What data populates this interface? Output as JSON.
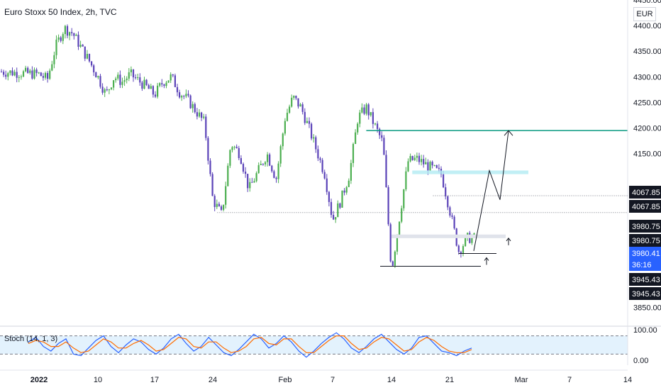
{
  "header": {
    "title": "Euro Stoxx 50 Index, 2h, TVC",
    "currency": "EUR"
  },
  "indicator": {
    "label": "Stoch (14, 1, 3)"
  },
  "colors": {
    "bull": "#4caf50",
    "bear": "#5b43b8",
    "resistance": "#089981",
    "zone": "#b2ebf2",
    "stoch_k": "#2962ff",
    "stoch_d": "#ff6d00",
    "price_tag_current": "#2962ff",
    "price_tag_level": "#131722",
    "stoch_band": "#e3f2fd"
  },
  "chart_data": [
    {
      "type": "candlestick",
      "title": "Euro Stoxx 50 Index, 2h, TVC",
      "ylim": [
        3820,
        4450
      ],
      "y_ticks": [
        3850.0,
        4150.0,
        4200.0,
        4250.0,
        4300.0,
        4350.0,
        4400.0,
        4450.0
      ],
      "x_ticks": [
        "2022",
        "10",
        "17",
        "24",
        "Feb",
        "7",
        "14",
        "21",
        "Mar",
        "7",
        "14"
      ],
      "close_path": [
        [
          "2022",
          4305
        ],
        [
          4,
          4295
        ],
        [
          5,
          4360
        ],
        [
          6,
          4395
        ],
        [
          7,
          4385
        ],
        [
          9,
          4330
        ],
        [
          10,
          4300
        ],
        [
          11,
          4265
        ],
        [
          12,
          4300
        ],
        [
          13,
          4290
        ],
        [
          14,
          4305
        ],
        [
          16,
          4280
        ],
        [
          17,
          4265
        ],
        [
          18,
          4290
        ],
        [
          19,
          4300
        ],
        [
          20,
          4270
        ],
        [
          21,
          4255
        ],
        [
          23,
          4210
        ],
        [
          24,
          4060
        ],
        [
          25,
          4030
        ],
        [
          26,
          4170
        ],
        [
          27,
          4150
        ],
        [
          28,
          4080
        ],
        [
          30,
          4150
        ],
        [
          31,
          4100
        ],
        [
          "Feb",
          4220
        ],
        [
          2,
          4260
        ],
        [
          3,
          4240
        ],
        [
          4,
          4200
        ],
        [
          6,
          4110
        ],
        [
          7,
          4020
        ],
        [
          8,
          4060
        ],
        [
          9,
          4110
        ],
        [
          10,
          4220
        ],
        [
          11,
          4240
        ],
        [
          13,
          4170
        ],
        [
          14,
          3920
        ],
        [
          15,
          4030
        ],
        [
          16,
          4135
        ],
        [
          17,
          4140
        ],
        [
          18,
          4130
        ],
        [
          20,
          4110
        ],
        [
          21,
          4040
        ],
        [
          22,
          3960
        ],
        [
          23,
          3985
        ]
      ],
      "annotations": {
        "resistance_line": 4195,
        "supply_zone": [
          4110,
          4117
        ],
        "gray_zone": [
          3985,
          3992
        ],
        "dotted_support": 4035,
        "dotted_current": 4067.85,
        "support_line_1": 3955,
        "support_line_2": 3930,
        "projection": [
          [
            3960,
            0
          ],
          [
            4117,
            1
          ],
          [
            4060,
            2
          ],
          [
            4195,
            3
          ]
        ]
      },
      "price_tags": [
        {
          "value": "4067.85",
          "style": "level"
        },
        {
          "value": "4067.85",
          "style": "level"
        },
        {
          "value": "3980.75",
          "style": "level"
        },
        {
          "value": "3980.75",
          "style": "level"
        },
        {
          "value": "3980.41",
          "style": "current"
        },
        {
          "value": "36:16",
          "style": "current"
        },
        {
          "value": "3945.43",
          "style": "level"
        },
        {
          "value": "3945.43",
          "style": "level"
        }
      ]
    },
    {
      "type": "line",
      "title": "Stoch (14, 1, 3)",
      "ylim": [
        0,
        100
      ],
      "y_ticks": [
        "100.00",
        "0.00"
      ],
      "band": [
        20,
        80
      ],
      "series": [
        {
          "name": "%K",
          "values": [
            60,
            75,
            45,
            30,
            55,
            70,
            20,
            15,
            40,
            65,
            80,
            45,
            25,
            50,
            70,
            60,
            35,
            20,
            40,
            70,
            85,
            55,
            30,
            45,
            75,
            50,
            25,
            15,
            35,
            60,
            85,
            70,
            40,
            55,
            80,
            60,
            30,
            10,
            30,
            55,
            75,
            90,
            70,
            40,
            25,
            45,
            70,
            85,
            60,
            35,
            20,
            40,
            75,
            80,
            55,
            30,
            25,
            15,
            30,
            40
          ]
        },
        {
          "name": "%D",
          "values": [
            55,
            65,
            60,
            45,
            45,
            60,
            40,
            25,
            30,
            50,
            70,
            60,
            40,
            40,
            55,
            65,
            50,
            30,
            35,
            55,
            75,
            70,
            45,
            40,
            60,
            60,
            40,
            25,
            30,
            45,
            70,
            75,
            55,
            50,
            70,
            70,
            45,
            25,
            25,
            45,
            65,
            80,
            80,
            55,
            35,
            40,
            60,
            75,
            70,
            50,
            30,
            35,
            60,
            75,
            65,
            45,
            30,
            25,
            25,
            35
          ]
        }
      ]
    }
  ]
}
